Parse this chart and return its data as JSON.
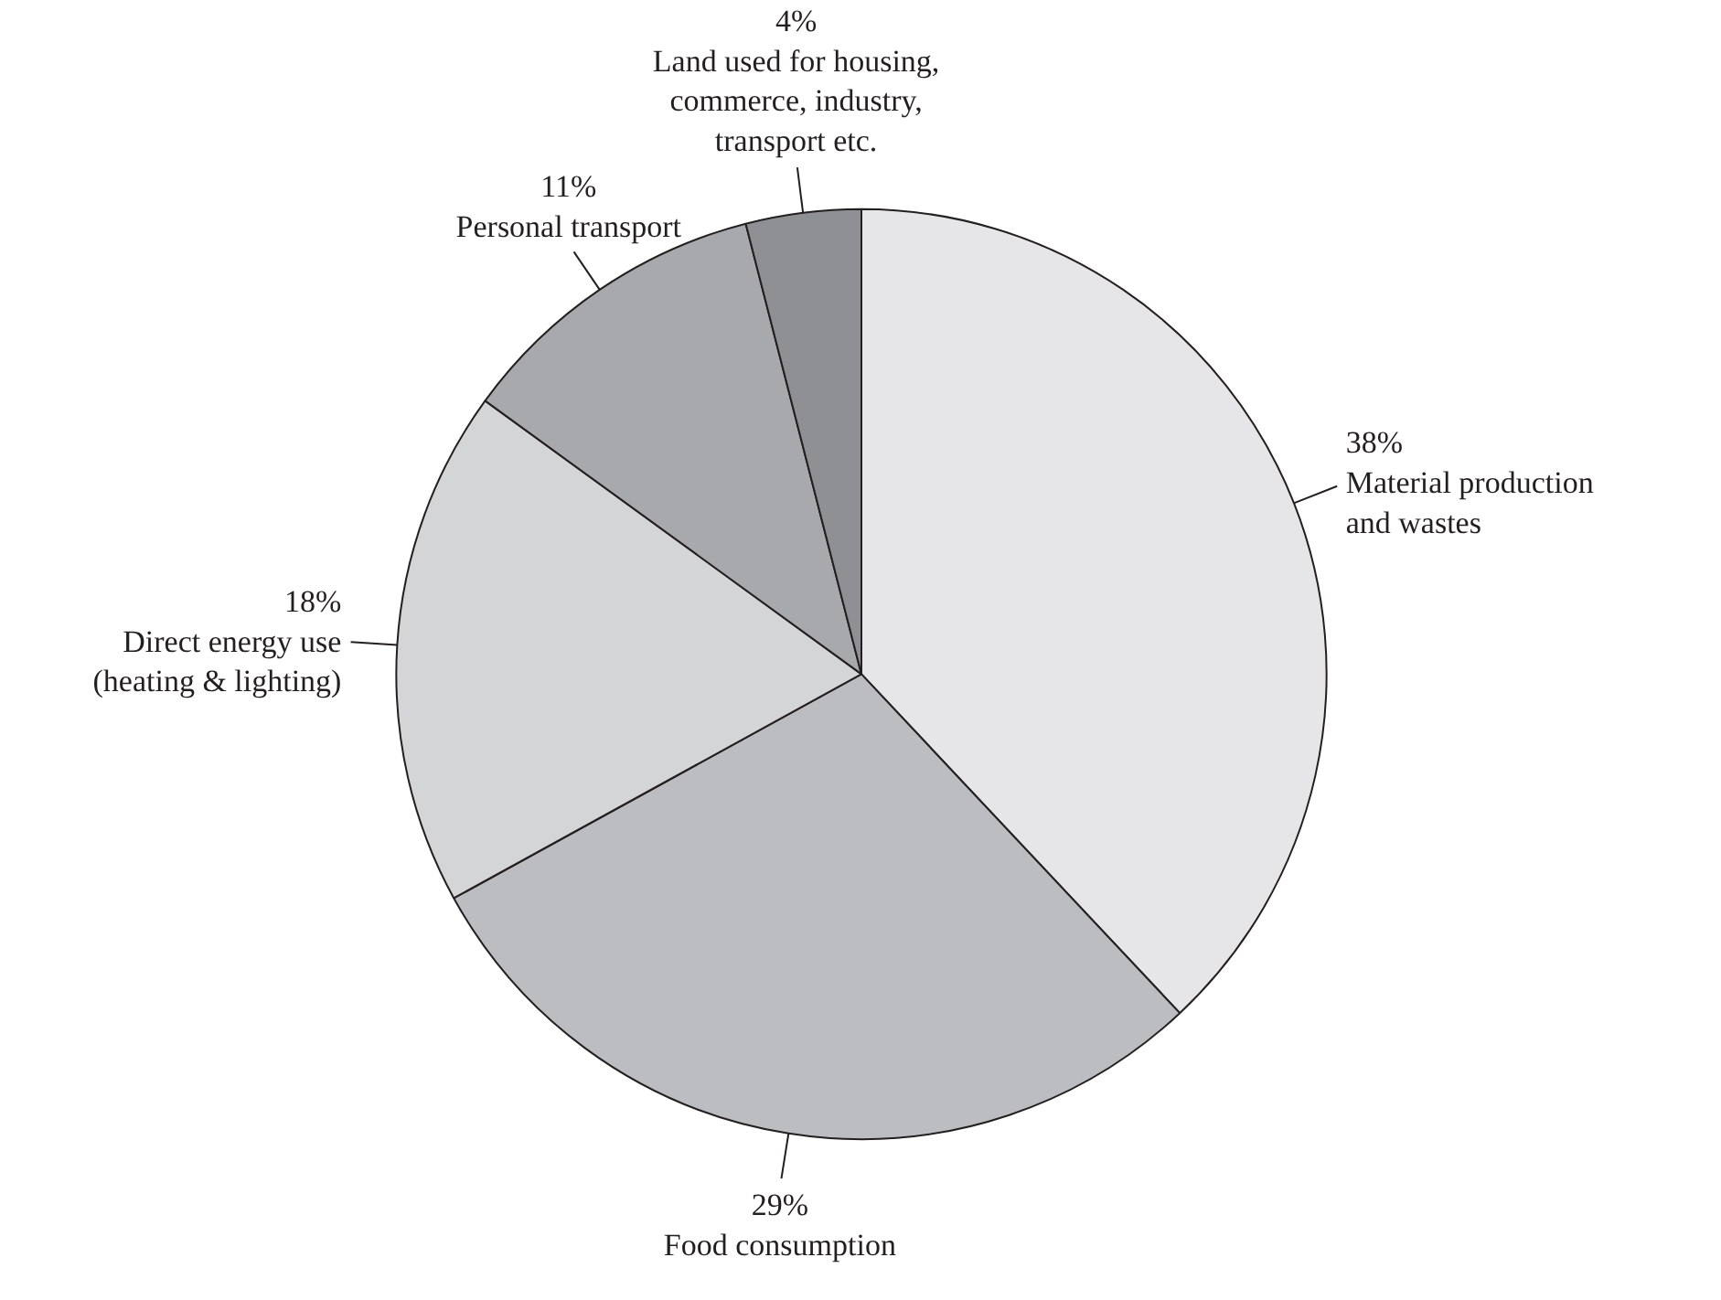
{
  "chart_data": {
    "type": "pie",
    "categories": [
      "Material production\nand wastes",
      "Food consumption",
      "Direct energy use\n(heating & lighting)",
      "Personal transport",
      "Land used for housing,\ncommerce, industry,\ntransport etc."
    ],
    "values": [
      38,
      29,
      18,
      11,
      4
    ],
    "value_labels": [
      "38%",
      "29%",
      "18%",
      "11%",
      "4%"
    ],
    "colors": [
      "#e6e6e8",
      "#bcbdc0",
      "#d4d5d7",
      "#a8a9ac",
      "#8f9093"
    ]
  }
}
